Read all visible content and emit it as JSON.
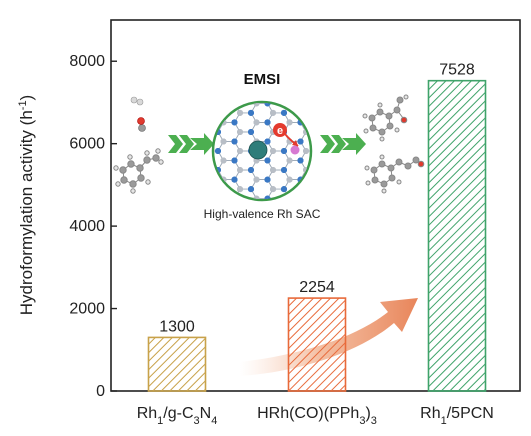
{
  "chart_data": {
    "type": "bar",
    "categories": [
      "Rh1/g-C3N4",
      "HRh(CO)(PPh3)3",
      "Rh1/5PCN"
    ],
    "category_labels": [
      {
        "parts": [
          [
            "Rh",
            ""
          ],
          [
            "1",
            "sub"
          ],
          [
            "/g-C",
            ""
          ],
          [
            "3",
            "sub"
          ],
          [
            "N",
            ""
          ],
          [
            "4",
            "sub"
          ]
        ]
      },
      {
        "parts": [
          [
            "HRh(CO)(PPh",
            ""
          ],
          [
            "3",
            "sub"
          ],
          [
            ")",
            ""
          ],
          [
            "3",
            "sub"
          ]
        ]
      },
      {
        "parts": [
          [
            "Rh",
            ""
          ],
          [
            "1",
            "sub"
          ],
          [
            "/5PCN",
            ""
          ]
        ]
      }
    ],
    "values": [
      1300,
      2254,
      7528
    ],
    "value_labels": [
      "1300",
      "2254",
      "7528"
    ],
    "bar_colors": [
      "#c8a24a",
      "#e86a3a",
      "#3fa36a"
    ],
    "bar_pattern": "diagonal-hatch",
    "ylabel": "Hydroformylation activity (h",
    "ylabel_sup": "-1",
    "ylabel_end": ")",
    "ylim": [
      0,
      9000
    ],
    "yticks": [
      0,
      2000,
      4000,
      6000,
      8000
    ],
    "yticks_labels": [
      "0",
      "2000",
      "4000",
      "6000",
      "8000"
    ],
    "grid": false,
    "legend": "none",
    "inset": {
      "title": "EMSI",
      "caption": "High-valence Rh SAC",
      "electron_label": "e",
      "accent_arrow_color": "#4caf50",
      "accent_circle_color": "#3d9a4a",
      "trend_arrow_color": "#e8855a"
    }
  }
}
